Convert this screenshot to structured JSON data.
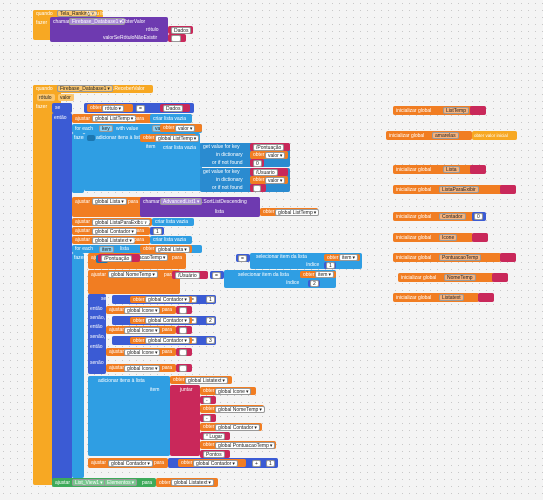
{
  "event1": {
    "header": "quando",
    "component": "Tela_Ranking",
    "event": ".Menu Inicializar",
    "fazer": "fazer",
    "call": "chamar",
    "db": "Firebase_Database1",
    "method": ".ObterValor",
    "tag_label": "rótulo",
    "tag_value": "Dados",
    "default_label": "valorSeRótuloNãoExistir",
    "default_value": ""
  },
  "event2": {
    "header": "quando",
    "component": "Firebase_Database1",
    "event": ".ReceberValor",
    "param1": "rótulo",
    "param2": "valor",
    "fazer": "fazer"
  },
  "tokens": {
    "se": "se",
    "entao": "então",
    "senao_se": "senão, se",
    "senao": "senão",
    "fazer": "fazer",
    "ajustar": "ajustar",
    "para": "para",
    "obter": "obter",
    "criar_lista_vazia": "criar lista vazia",
    "para_cada": "for each",
    "key": "key",
    "with_value": "with value",
    "in_dictionary": "in dictionary",
    "adicionar_itens": "adicionar itens à lista",
    "lista": "lista",
    "item": "item",
    "chamar": "chamar",
    "get_value_for_key": "get value for key",
    "or_if_not_found": "or if not found",
    "selecionar_item": "selecionar item da lista",
    "indice": "índice",
    "juntar": "juntar",
    "eq": "=",
    "plus": "+",
    "iniciar": "inicializar global"
  },
  "vars": {
    "rotulo": "rótulo",
    "valor": "valor",
    "dados": "Dados",
    "list_temp": "global ListTemp",
    "amarelas": "global amarelas",
    "lista": "global Lista",
    "lista_para_exibir": "global ListaParaExibir",
    "contador": "global Contador",
    "icone": "global Icone",
    "pontuacao_temp": "global PontuacaoTemp",
    "nome_temp": "global NomeTemp",
    "lista_text": "global Listatext",
    "list_view": "List_View1",
    "elementos": "Elementos",
    "advanced": "AdvancedList1",
    "sort_desc": ".SortListDescending",
    "pontuacao": "/Pontuação",
    "usuario": "/Usuario",
    "usuario2": "/Usuário",
    "item": "item"
  },
  "nums": {
    "zero": "0",
    "one": "1",
    "two": "2",
    "three": "3"
  },
  "strings": {
    "empty": "",
    "lugar": "° Lugar",
    "pontos": " Pontos",
    "dash": "-"
  },
  "globals": [
    {
      "label": "inicializar global",
      "name": "ListTemp",
      "value": "criar lista vazia"
    },
    {
      "label": "inicializar global",
      "name": "amarelas",
      "value": "obter valor inicial"
    },
    {
      "label": "inicializar global",
      "name": "Lista",
      "value": ""
    },
    {
      "label": "inicializar global",
      "name": "ListaParaExibir",
      "value": ""
    },
    {
      "label": "inicializar global",
      "name": "Contador",
      "value": "0"
    },
    {
      "label": "inicializar global",
      "name": "Icone",
      "value": ""
    },
    {
      "label": "inicializar global",
      "name": "PontuacaoTemp",
      "value": ""
    },
    {
      "label": "inicializar global",
      "name": "NomeTemp",
      "value": ""
    },
    {
      "label": "inicializar global",
      "name": "Listatext",
      "value": ""
    }
  ],
  "colors": {
    "event": "#f7a823",
    "variable": "#f17d22",
    "procedure": "#6e3ab0",
    "list": "#2f9ee3",
    "control": "#3b5bd4",
    "text": "#c9285a",
    "math": "#3b5bd4",
    "component": "#3daa5a",
    "dict": "#2f9ee3"
  }
}
